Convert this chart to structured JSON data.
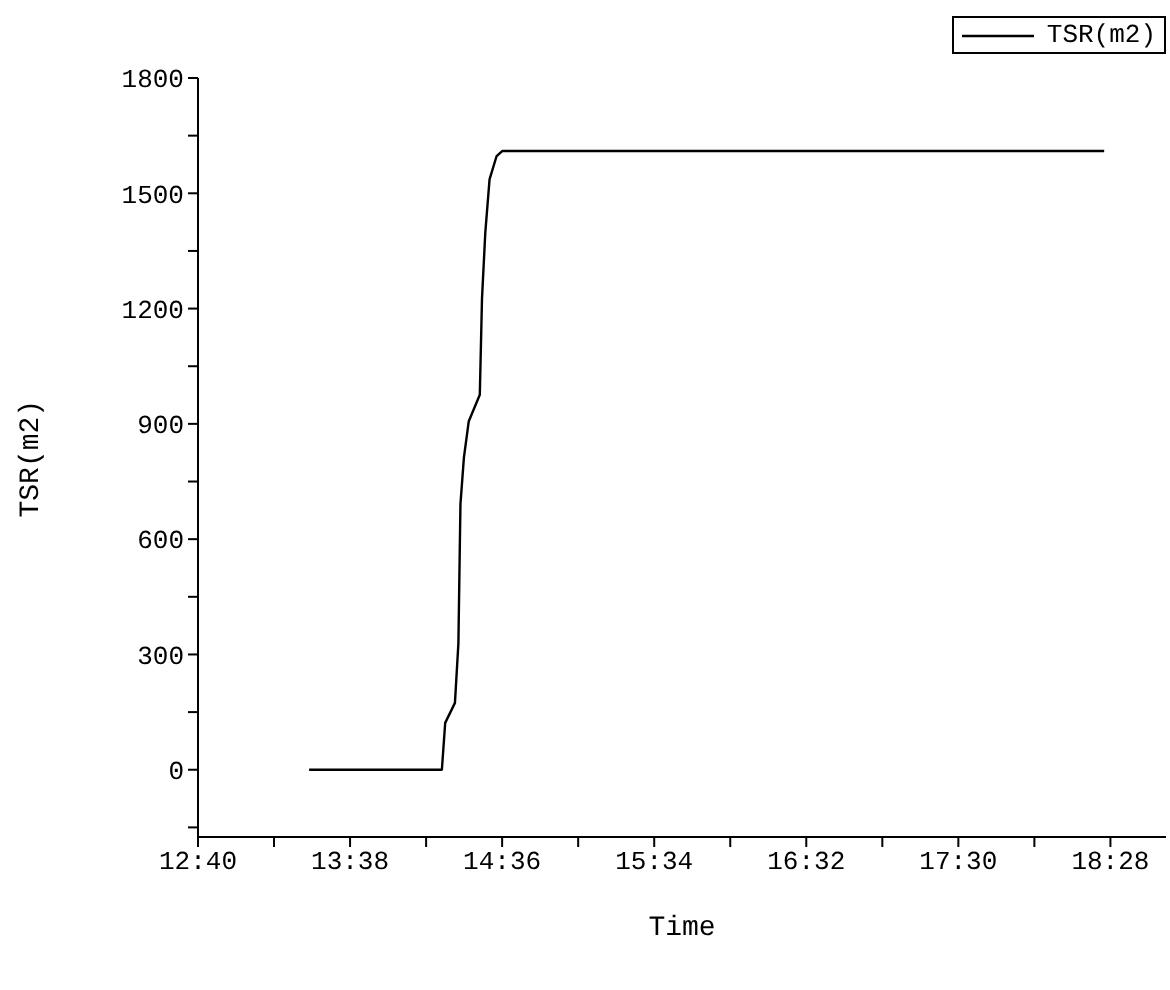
{
  "chart_data": {
    "type": "line",
    "xlabel": "Time",
    "ylabel": "TSR(m2)",
    "x": [
      13.373,
      14.217,
      14.238,
      14.3,
      14.322,
      14.335,
      14.357,
      14.388,
      14.458,
      14.472,
      14.493,
      14.52,
      14.565,
      14.6,
      18.427
    ],
    "series": [
      {
        "name": "TSR(m2)",
        "color": "#000000",
        "values": [
          0,
          0,
          122,
          174,
          329,
          691,
          812,
          907,
          976,
          1226,
          1398,
          1536,
          1597,
          1610,
          1610
        ]
      }
    ],
    "xlim": [
      12.6667,
      18.82
    ],
    "xticks": [
      {
        "value": 12.6667,
        "label": "12:40"
      },
      {
        "value": 13.15,
        "label": null
      },
      {
        "value": 13.6333,
        "label": "13:38"
      },
      {
        "value": 14.1167,
        "label": null
      },
      {
        "value": 14.6,
        "label": "14:36"
      },
      {
        "value": 15.0833,
        "label": null
      },
      {
        "value": 15.5667,
        "label": "15:34"
      },
      {
        "value": 16.05,
        "label": null
      },
      {
        "value": 16.5333,
        "label": "16:32"
      },
      {
        "value": 17.0167,
        "label": null
      },
      {
        "value": 17.5,
        "label": "17:30"
      },
      {
        "value": 17.9833,
        "label": null
      },
      {
        "value": 18.4667,
        "label": "18:28"
      }
    ],
    "ylim": [
      -175,
      1800
    ],
    "yticks": [
      {
        "value": -150,
        "label": null
      },
      0,
      {
        "value": 150,
        "label": null
      },
      300,
      {
        "value": 450,
        "label": null
      },
      600,
      {
        "value": 750,
        "label": null
      },
      900,
      {
        "value": 1050,
        "label": null
      },
      1200,
      {
        "value": 1350,
        "label": null
      },
      1500,
      {
        "value": 1650,
        "label": null
      },
      1800
    ],
    "grid": false,
    "legend": "top right",
    "marker": "none",
    "line_style": "solid"
  }
}
